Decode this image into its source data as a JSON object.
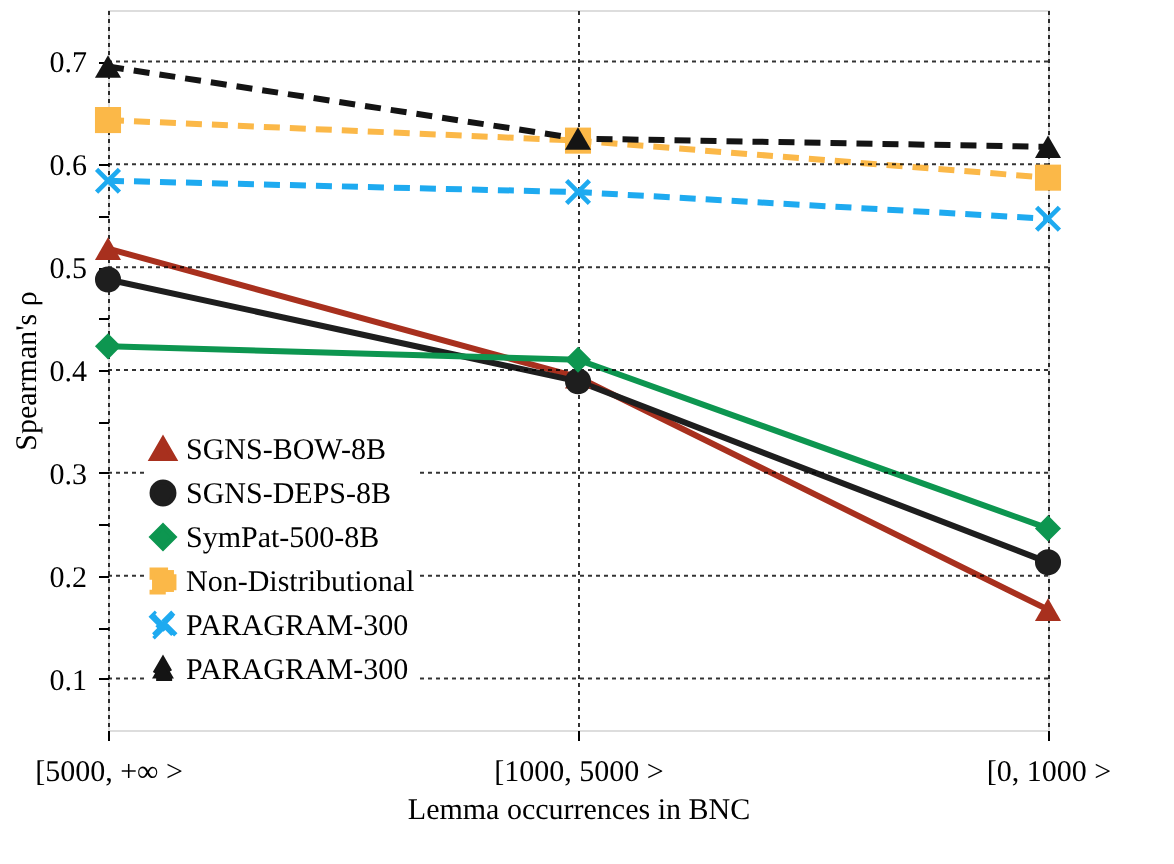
{
  "chart_data": {
    "type": "line",
    "xlabel": "Lemma occurrences in BNC",
    "ylabel": "Spearman's ρ",
    "categories": [
      "[5000, +∞ >",
      "[1000, 5000 >",
      "[0, 1000 >"
    ],
    "ylim": [
      0.05,
      0.75
    ],
    "yticks": [
      0.1,
      {
        "value": 0.15,
        "label": null
      },
      0.2,
      {
        "value": 0.25,
        "label": null
      },
      0.3,
      {
        "value": 0.35,
        "label": null
      },
      0.4,
      {
        "value": 0.45,
        "label": null
      },
      0.5,
      {
        "value": 0.55,
        "label": null
      },
      0.6,
      {
        "value": 0.65,
        "label": null
      },
      0.7
    ],
    "grid": true,
    "legend": "bottom left",
    "series": [
      {
        "name": "SGNS-BOW-8B",
        "color": "#a8301e",
        "marker": "triangle",
        "line_style": "solid",
        "values": [
          0.518,
          0.393,
          0.167
        ]
      },
      {
        "name": "SGNS-DEPS-8B",
        "color": "#1e1e1e",
        "marker": "circle",
        "line_style": "solid",
        "values": [
          0.488,
          0.389,
          0.213
        ]
      },
      {
        "name": "SymPat-500-8B",
        "color": "#0d9650",
        "marker": "diamond",
        "line_style": "solid",
        "values": [
          0.423,
          0.41,
          0.246
        ]
      },
      {
        "name": "Non-Distributional",
        "color": "#fbb848",
        "marker": "square",
        "line_style": "dashed",
        "values": [
          0.643,
          0.623,
          0.587
        ]
      },
      {
        "name": "PARAGRAM-300",
        "color": "#1eaaf0",
        "marker": "cross",
        "line_style": "dashed",
        "values": [
          0.584,
          0.573,
          0.547
        ]
      },
      {
        "name": "PARAGRAM-300",
        "color": "#141414",
        "marker": "triangle",
        "line_style": "dashed",
        "values": [
          0.695,
          0.625,
          0.617
        ]
      }
    ]
  }
}
